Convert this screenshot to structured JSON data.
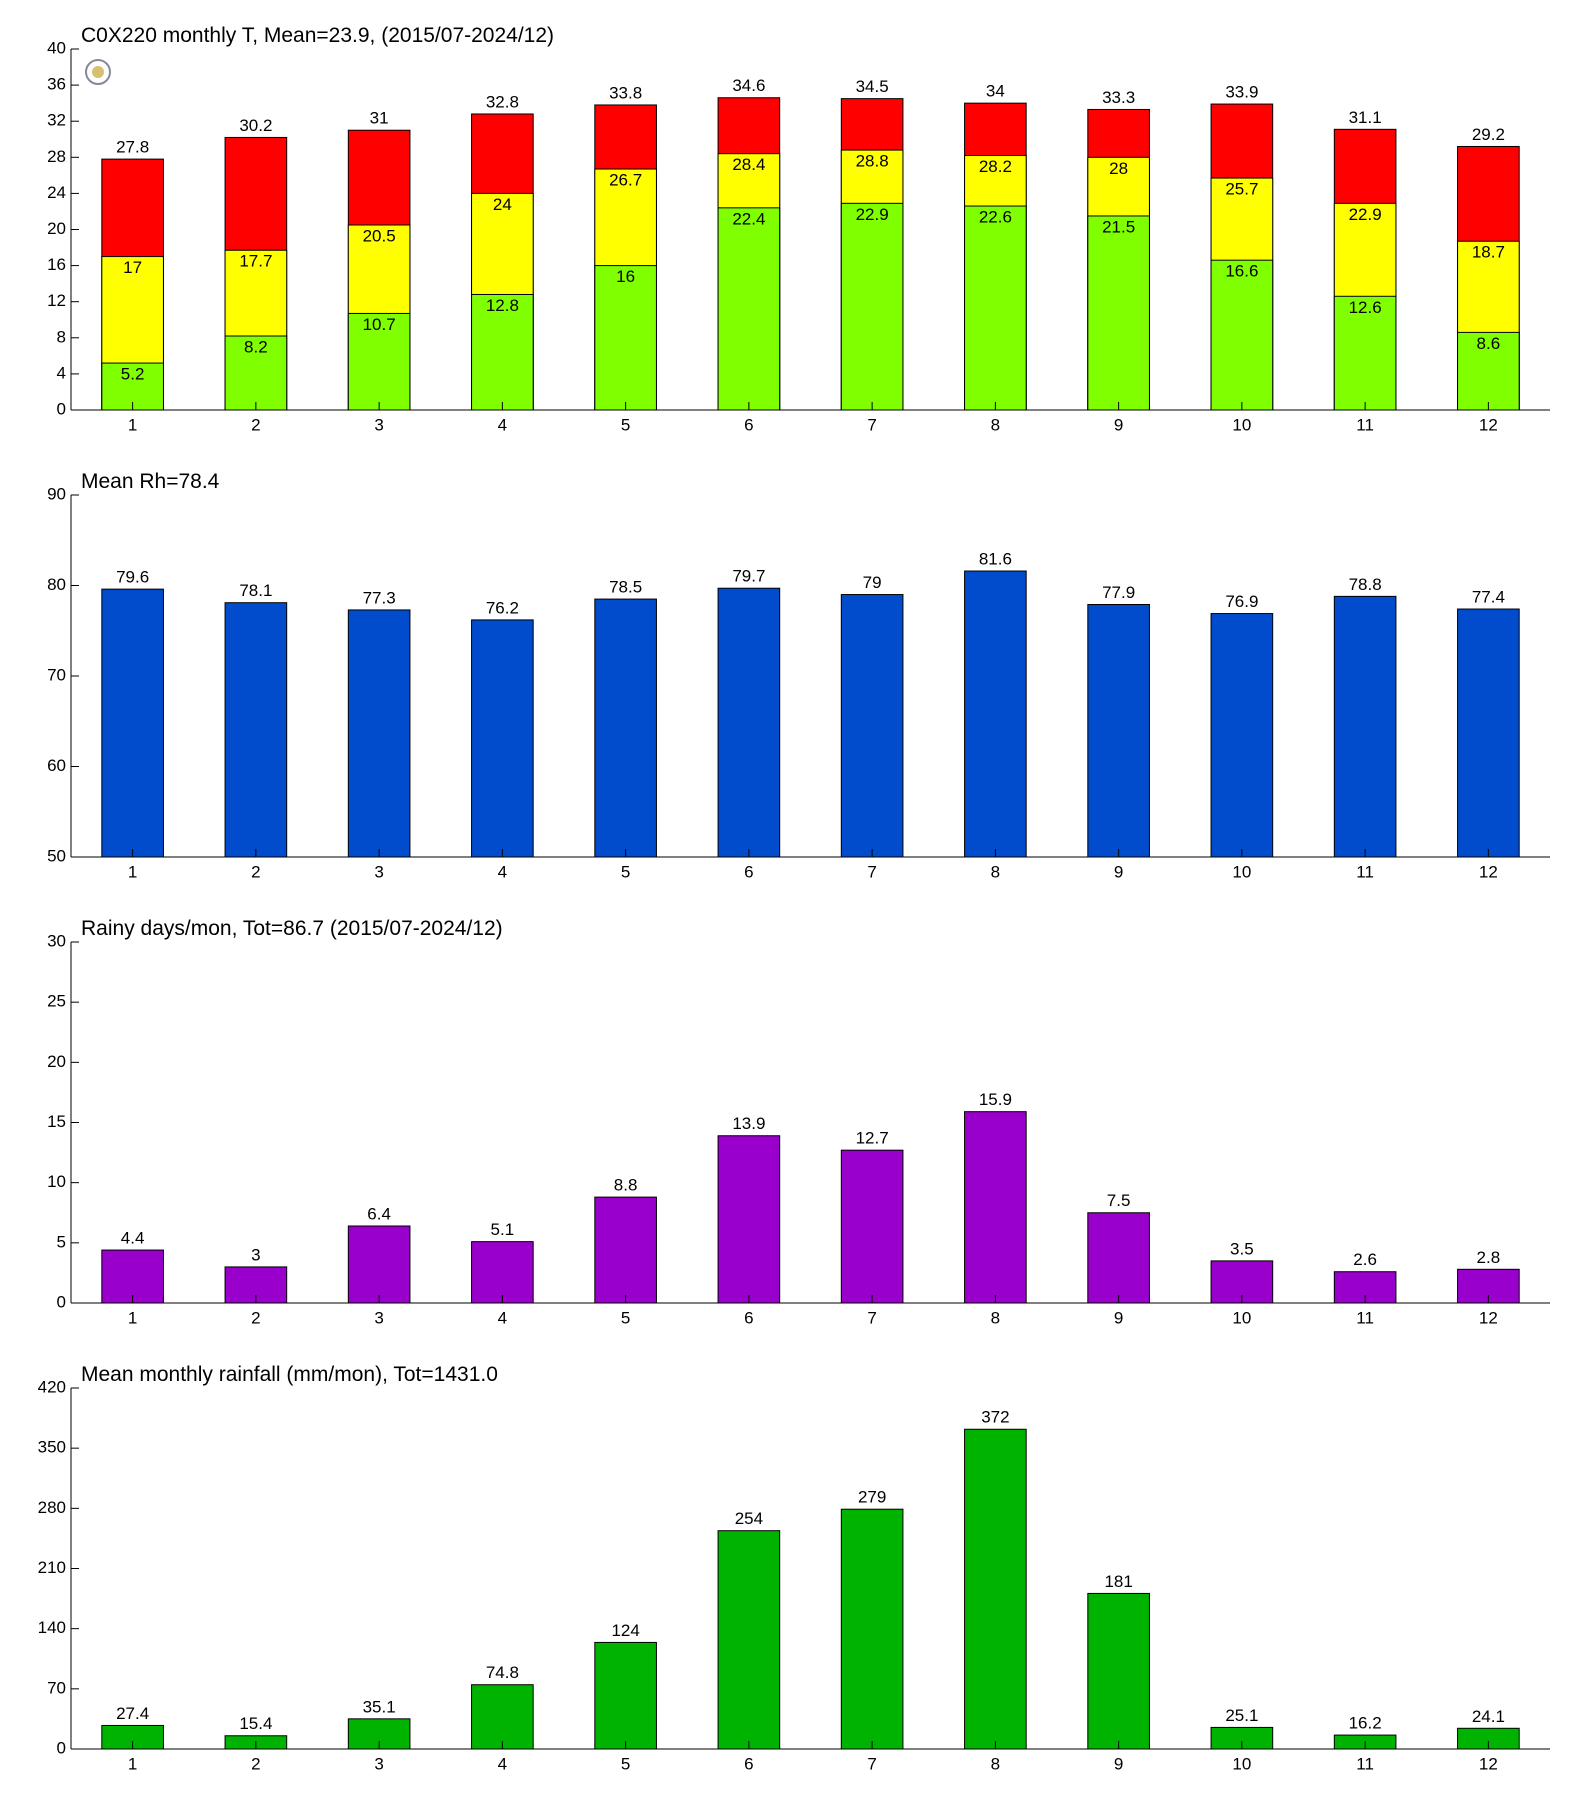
{
  "chart_data": [
    {
      "type": "bar",
      "title": "C0X220 monthly T, Mean=23.9, (2015/07-2024/12)",
      "categories": [
        "1",
        "2",
        "3",
        "4",
        "5",
        "6",
        "7",
        "8",
        "9",
        "10",
        "11",
        "12"
      ],
      "series": [
        {
          "color": "#ff0000",
          "values": [
            27.8,
            30.2,
            31,
            32.8,
            33.8,
            34.6,
            34.5,
            34,
            33.3,
            33.9,
            31.1,
            29.2
          ]
        },
        {
          "color": "#ffff00",
          "values": [
            17,
            17.7,
            20.5,
            24,
            26.7,
            28.4,
            28.8,
            28.2,
            28,
            25.7,
            22.9,
            18.7
          ]
        },
        {
          "color": "#80ff00",
          "values": [
            5.2,
            8.2,
            10.7,
            12.8,
            16,
            22.4,
            22.9,
            22.6,
            21.5,
            16.6,
            12.6,
            8.6
          ]
        }
      ],
      "ylim": [
        0,
        40
      ],
      "yticks": [
        0,
        4,
        8,
        12,
        16,
        20,
        24,
        28,
        32,
        36,
        40
      ]
    },
    {
      "type": "bar",
      "title": "Mean Rh=78.4",
      "categories": [
        "1",
        "2",
        "3",
        "4",
        "5",
        "6",
        "7",
        "8",
        "9",
        "10",
        "11",
        "12"
      ],
      "series": [
        {
          "color": "#004ccc",
          "values": [
            79.6,
            78.1,
            77.3,
            76.2,
            78.5,
            79.7,
            79,
            81.6,
            77.9,
            76.9,
            78.8,
            77.4
          ]
        }
      ],
      "ylim": [
        50,
        90
      ],
      "yticks": [
        50,
        60,
        70,
        80,
        90
      ]
    },
    {
      "type": "bar",
      "title": "Rainy days/mon, Tot=86.7 (2015/07-2024/12)",
      "categories": [
        "1",
        "2",
        "3",
        "4",
        "5",
        "6",
        "7",
        "8",
        "9",
        "10",
        "11",
        "12"
      ],
      "series": [
        {
          "color": "#9900cc",
          "values": [
            4.4,
            3,
            6.4,
            5.1,
            8.8,
            13.9,
            12.7,
            15.9,
            7.5,
            3.5,
            2.6,
            2.8
          ]
        }
      ],
      "ylim": [
        0,
        30
      ],
      "yticks": [
        0,
        5,
        10,
        15,
        20,
        25,
        30
      ]
    },
    {
      "type": "bar",
      "title": "Mean monthly rainfall (mm/mon), Tot=1431.0",
      "categories": [
        "1",
        "2",
        "3",
        "4",
        "5",
        "6",
        "7",
        "8",
        "9",
        "10",
        "11",
        "12"
      ],
      "series": [
        {
          "color": "#00b300",
          "values": [
            27.4,
            15.4,
            35.1,
            74.8,
            124,
            254,
            279,
            372,
            181,
            25.1,
            16.2,
            24.1
          ]
        }
      ],
      "ylim": [
        0,
        420
      ],
      "yticks": [
        0,
        70,
        140,
        210,
        280,
        350,
        420
      ]
    }
  ]
}
